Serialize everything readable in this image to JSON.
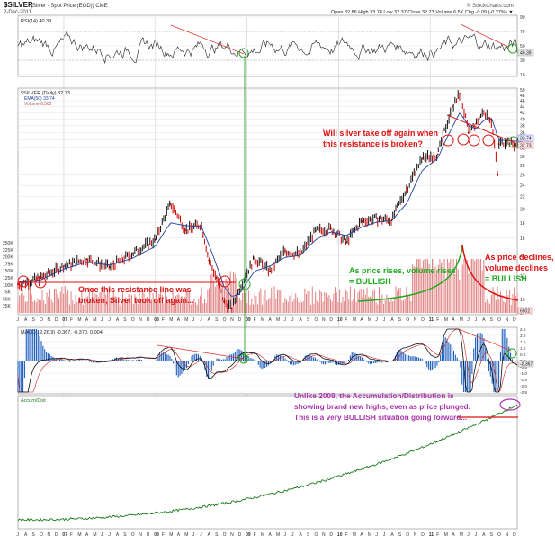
{
  "header": {
    "title": "$SILVER",
    "subtitle": "(Silver - Spot Price (EOD)) CME",
    "date": "2-Dec-2011",
    "watermark": "© StockCharts.com",
    "ohlc": "Open 32.86  High 33.74  Low 32.37  Close 32.73  Volume 6.5K  Chg -0.09 (-0.27%) ▼"
  },
  "colors": {
    "price_up": "#111111",
    "price_down": "#cc0000",
    "ema": "#1f3f9f",
    "volume": "#e08080",
    "rsi": "#222222",
    "macd": "#111111",
    "signal": "#cc2222",
    "histogram": "#1f5fbf",
    "accum": "#1a7a1a",
    "annotation_red": "#dd1111",
    "annotation_green": "#22aa22",
    "annotation_purple": "#aa33aa"
  },
  "x_axis": {
    "year_markers": [
      "07",
      "08",
      "09",
      "10",
      "11"
    ],
    "bottom_labels": [
      "J",
      "A",
      "S",
      "O",
      "N",
      "D",
      "07",
      "F",
      "M",
      "A",
      "M",
      "J",
      "J",
      "A",
      "S",
      "O",
      "N",
      "D",
      "08",
      "F",
      "M",
      "A",
      "M",
      "J",
      "J",
      "A",
      "S",
      "O",
      "N",
      "D",
      "09",
      "F",
      "M",
      "A",
      "M",
      "J",
      "J",
      "A",
      "S",
      "O",
      "N",
      "D",
      "10",
      "F",
      "M",
      "A",
      "M",
      "J",
      "J",
      "A",
      "S",
      "O",
      "N",
      "D",
      "11",
      "F",
      "M",
      "A",
      "M",
      "J",
      "J",
      "A",
      "S",
      "O",
      "N",
      "D"
    ]
  },
  "panels": {
    "rsi": {
      "legend": "RSI(14) 40.39",
      "ticks": [
        "90",
        "70",
        "50",
        "30",
        "10"
      ],
      "last_value": "40.39"
    },
    "price": {
      "legend_title": "$SILVER (Daily) 32.73",
      "legend_ema": "EMA(50) 33.74",
      "legend_volume": "Volume 6,502",
      "right_ticks": [
        "50",
        "48",
        "46",
        "44",
        "42",
        "40",
        "38",
        "36",
        "34",
        "32",
        "30",
        "28",
        "26",
        "24",
        "22",
        "20",
        "18",
        "16",
        "14",
        "12",
        "10",
        "9"
      ],
      "last_price": "32.73",
      "last_ema": "33.74",
      "volume_ticks": [
        "250K",
        "225K",
        "200K",
        "175K",
        "150K",
        "125K",
        "100K",
        "75K",
        "50K",
        "25K"
      ],
      "volume_last": "6502"
    },
    "macd": {
      "legend": "MACD(12,26,9) -0.367, -0.370, 0.004",
      "ticks": [
        "2.5",
        "2.0",
        "1.5",
        "1.0",
        "0.5",
        "0.0",
        "-0.5",
        "-1.0",
        "-1.5",
        "-2.0",
        "-2.5"
      ],
      "last_value": "-0.367"
    },
    "accum": {
      "legend": "Accum/Dist"
    }
  },
  "annotations": {
    "resistance_question": "Will silver take off again when\nthis resistance is broken?",
    "resistance_broken": "Once this resistance line was\nbroken, Silver took off again...",
    "volume_rises": "As price rises, volume rises\n= BULLISH",
    "volume_declines": "As price declines,\nvolume declines\n= BULLISH",
    "accum_note": "Unlike 2008, the Accumulation/Distribution is\nshowing brand new highs, even as price plunged.\nThis is a very BULLISH situation going forward..."
  },
  "chart_data": [
    {
      "type": "line",
      "title": "$SILVER (Daily) 32.73",
      "x": [
        "2006-07",
        "2006-10",
        "2007-01",
        "2007-04",
        "2007-07",
        "2007-10",
        "2008-01",
        "2008-03",
        "2008-05",
        "2008-07",
        "2008-08",
        "2008-09",
        "2008-10",
        "2008-11",
        "2008-12",
        "2009-02",
        "2009-04",
        "2009-06",
        "2009-08",
        "2009-10",
        "2009-12",
        "2010-02",
        "2010-04",
        "2010-06",
        "2010-08",
        "2010-10",
        "2010-12",
        "2011-02",
        "2011-04",
        "2011-04-28",
        "2011-06",
        "2011-07",
        "2011-08",
        "2011-09",
        "2011-09-26",
        "2011-10",
        "2011-11",
        "2011-12"
      ],
      "series": [
        {
          "name": "$SILVER (Daily)",
          "values": [
            11.2,
            11.8,
            12.9,
            13.6,
            12.8,
            14.2,
            15.8,
            20.8,
            17.0,
            17.8,
            13.5,
            11.8,
            9.8,
            9.3,
            10.8,
            13.7,
            12.4,
            14.5,
            14.1,
            16.9,
            17.2,
            15.5,
            18.2,
            18.6,
            18.4,
            23.5,
            29.5,
            30.5,
            44.0,
            48.6,
            36.0,
            38.5,
            42.5,
            39.8,
            26.0,
            33.0,
            33.8,
            32.73
          ]
        },
        {
          "name": "EMA(50)",
          "values": [
            11.4,
            11.6,
            12.6,
            13.3,
            13.0,
            13.7,
            15.0,
            18.0,
            17.6,
            17.5,
            15.2,
            13.0,
            11.0,
            10.2,
            10.4,
            12.4,
            12.9,
            13.8,
            14.0,
            15.8,
            16.8,
            16.3,
            17.4,
            18.1,
            18.3,
            21.0,
            27.0,
            29.5,
            38.0,
            42.0,
            38.0,
            37.0,
            39.5,
            40.5,
            35.0,
            34.0,
            33.9,
            33.74
          ]
        }
      ],
      "ylim": [
        9,
        50
      ],
      "log_scale": true
    },
    {
      "type": "line",
      "title": "RSI(14) 40.39",
      "x_range": [
        "2006-07",
        "2011-12"
      ],
      "ylim": [
        10,
        90
      ],
      "reference_lines": [
        70,
        30
      ],
      "series": [
        {
          "name": "RSI(14)",
          "values": [
            40.39
          ]
        }
      ]
    },
    {
      "type": "line",
      "title": "MACD(12,26,9) -0.367, -0.370, 0.004",
      "x_range": [
        "2006-07",
        "2011-12"
      ],
      "ylim": [
        -2.5,
        2.5
      ],
      "series": [
        {
          "name": "MACD",
          "values": [
            -0.367
          ]
        },
        {
          "name": "Signal",
          "values": [
            -0.37
          ]
        },
        {
          "name": "Histogram",
          "values": [
            0.004
          ]
        }
      ]
    },
    {
      "type": "line",
      "title": "Accum/Dist",
      "x_range": [
        "2006-07",
        "2011-12"
      ],
      "series": [
        {
          "name": "Accum/Dist",
          "values": []
        }
      ]
    }
  ]
}
